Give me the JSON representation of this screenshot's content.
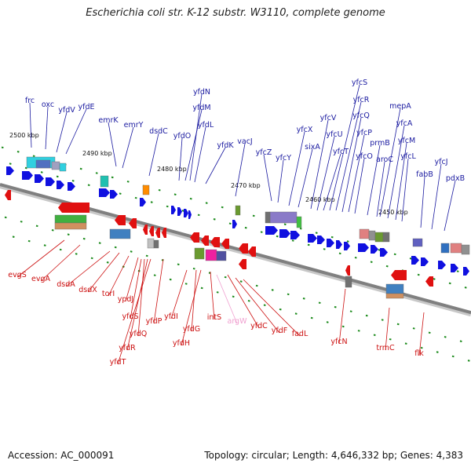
{
  "title": "Escherichia coli str. K-12 substr. W3110, complete genome",
  "footer": {
    "accession": "Accession: AC_000091",
    "summary": "Topology: circular; Length: 4,646,332 bp; Genes: 4,383"
  },
  "colors": {
    "forward_gene": "#1010e0",
    "reverse_gene": "#e01010",
    "pseudo_gene": "#f0a0d0",
    "backbone": "#808080",
    "tick": "#1a8a1a"
  },
  "kbp_labels": [
    "2500 kbp",
    "2490 kbp",
    "2480 kbp",
    "2470 kbp",
    "2460 kbp",
    "2450 kbp"
  ],
  "forward_labels": [
    "frc",
    "oxc",
    "yfdV",
    "yfdE",
    "emrK",
    "emrY",
    "dsdC",
    "yfdO",
    "yfdM",
    "yfdN",
    "yfdL",
    "yfdK",
    "vacJ",
    "yfcZ",
    "yfcY",
    "yfcX",
    "sixA",
    "yfcV",
    "yfcU",
    "yfcT",
    "yfcS",
    "yfcR",
    "yfcQ",
    "yfcP",
    "yfcO",
    "prmB",
    "aroC",
    "mepA",
    "yfcA",
    "yfcM",
    "yfcL",
    "fabB",
    "yfcJ",
    "pdxB"
  ],
  "reverse_labels": [
    "evgS",
    "evgA",
    "dsdA",
    "dsdX",
    "torI",
    "ypdJ",
    "yfdS",
    "yfdQ",
    "yfdR",
    "yfdT",
    "yfdP",
    "yfdI",
    "yfdG",
    "yfdH",
    "intS",
    "argW",
    "yfdC",
    "yfdF",
    "fadL",
    "yfcN",
    "trmC",
    "flk"
  ]
}
